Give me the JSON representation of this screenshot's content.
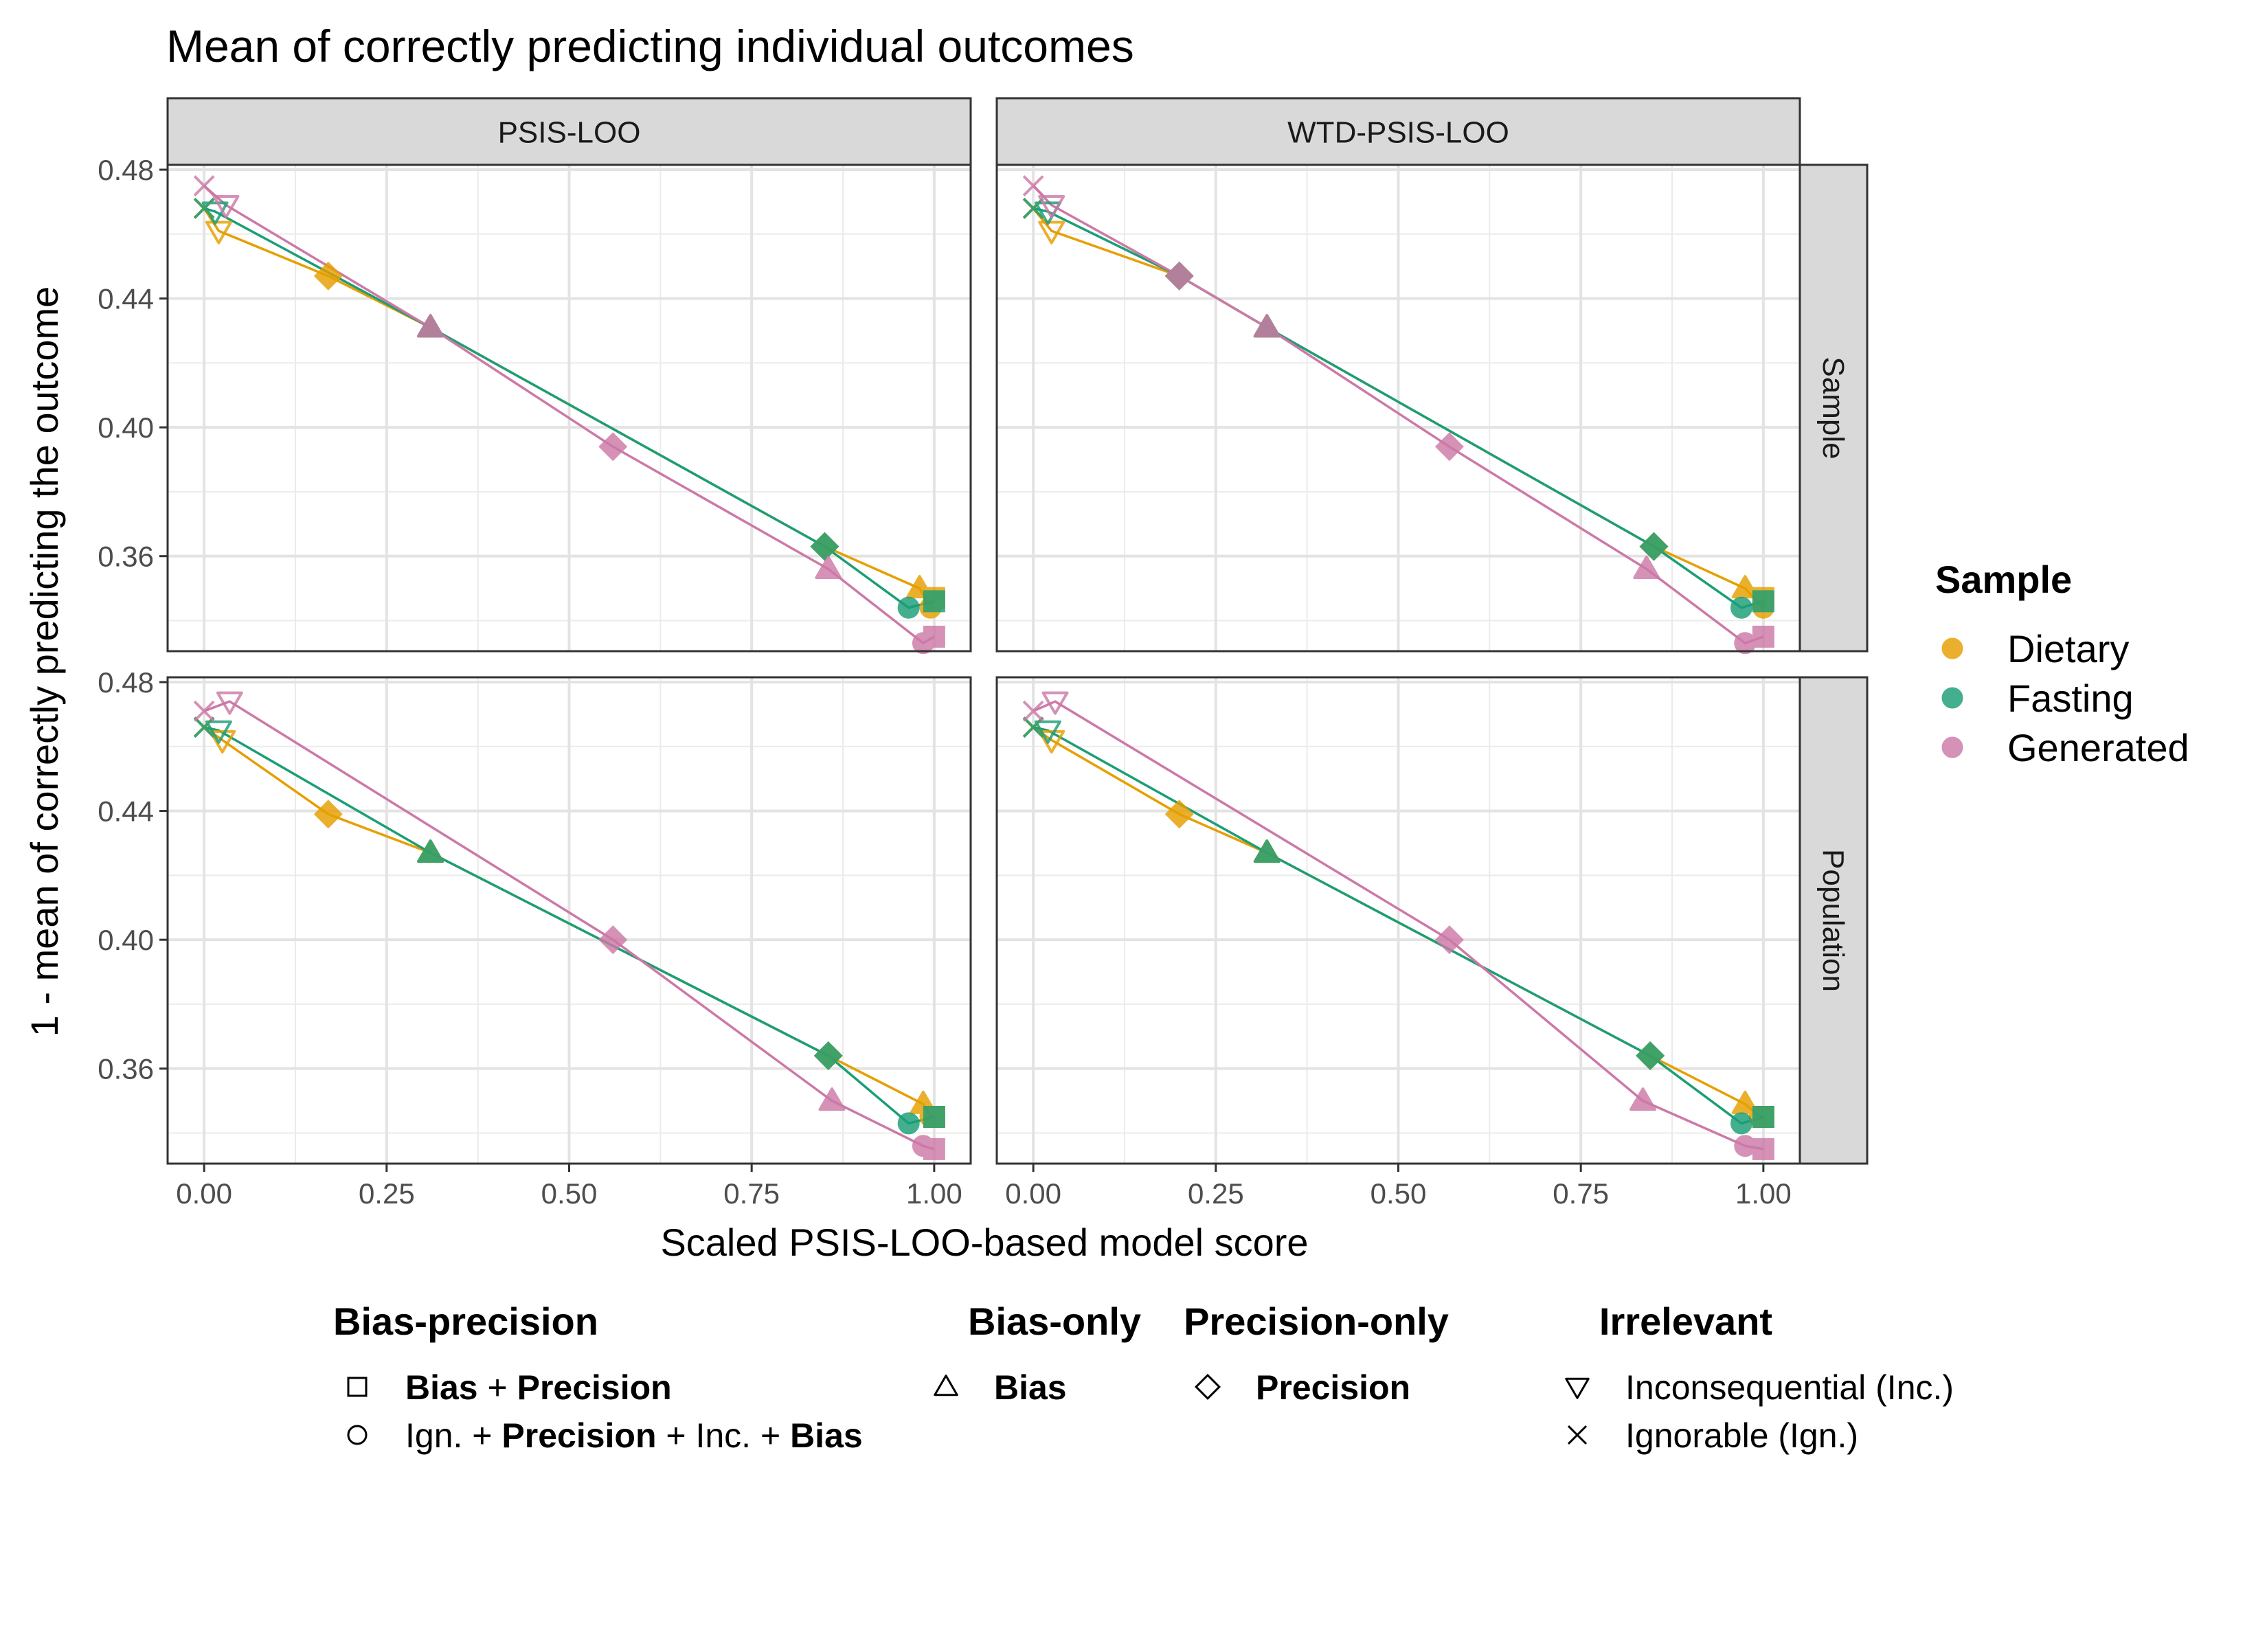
{
  "title": "Mean of correctly predicting individual outcomes",
  "chart_data": {
    "type": "line",
    "title": "Mean of correctly predicting individual outcomes",
    "xlabel": "Scaled PSIS-LOO-based model score",
    "ylabel": "1 - mean of correctly predicting the outcome",
    "xlim": [
      -0.05,
      1.05
    ],
    "ylim": [
      0.3305,
      0.4815
    ],
    "x_ticks": [
      "0.00",
      "0.25",
      "0.50",
      "0.75",
      "1.00"
    ],
    "y_ticks": [
      "0.36",
      "0.40",
      "0.44",
      "0.48"
    ],
    "grid": true,
    "col_facets": [
      "PSIS-LOO",
      "WTD-PSIS-LOO"
    ],
    "row_facets": [
      "Sample",
      "Population"
    ],
    "colors": {
      "Dietary": "#E69F00",
      "Fasting": "#1B9E77",
      "Generated": "#CC79A7"
    },
    "legend_color": {
      "title": "Sample",
      "placement": "right",
      "entries": [
        "Dietary",
        "Fasting",
        "Generated"
      ]
    },
    "legend_shape": {
      "placement": "bottom",
      "groups": [
        {
          "title": "Bias-precision",
          "entries": [
            {
              "shape": "square",
              "parts": [
                {
                  "t": "Bias",
                  "b": true
                },
                {
                  "t": " + ",
                  "b": false
                },
                {
                  "t": "Precision",
                  "b": true
                }
              ]
            },
            {
              "shape": "circle",
              "parts": [
                {
                  "t": "Ign. + ",
                  "b": false
                },
                {
                  "t": "Precision",
                  "b": true
                },
                {
                  "t": " + Inc. + ",
                  "b": false
                },
                {
                  "t": "Bias",
                  "b": true
                }
              ]
            }
          ]
        },
        {
          "title": "Bias-only",
          "entries": [
            {
              "shape": "triangle",
              "parts": [
                {
                  "t": "Bias",
                  "b": true
                }
              ]
            }
          ]
        },
        {
          "title": "Precision-only",
          "entries": [
            {
              "shape": "diamond",
              "parts": [
                {
                  "t": "Precision",
                  "b": true
                }
              ]
            }
          ]
        },
        {
          "title": "Irrelevant",
          "entries": [
            {
              "shape": "triangle-down",
              "parts": [
                {
                  "t": "Inconsequential (Inc.)",
                  "b": false
                }
              ]
            },
            {
              "shape": "cross",
              "parts": [
                {
                  "t": "Ignorable (Ign.)",
                  "b": false
                }
              ]
            }
          ]
        }
      ]
    },
    "panels": [
      {
        "col": "PSIS-LOO",
        "row": "Sample",
        "series": [
          {
            "name": "Dietary",
            "points": [
              {
                "x": 0.0,
                "y": 0.468,
                "shape": "cross"
              },
              {
                "x": 0.02,
                "y": 0.461,
                "shape": "triangle-down"
              },
              {
                "x": 0.17,
                "y": 0.447,
                "shape": "diamond"
              },
              {
                "x": 0.31,
                "y": 0.431,
                "shape": "triangle"
              },
              {
                "x": 0.85,
                "y": 0.363,
                "shape": "diamond"
              },
              {
                "x": 0.98,
                "y": 0.35,
                "shape": "triangle"
              },
              {
                "x": 0.995,
                "y": 0.344,
                "shape": "circle"
              },
              {
                "x": 1.0,
                "y": 0.347,
                "shape": "square"
              }
            ]
          },
          {
            "name": "Fasting",
            "points": [
              {
                "x": 0.0,
                "y": 0.468,
                "shape": "cross"
              },
              {
                "x": 0.015,
                "y": 0.467,
                "shape": "triangle-down"
              },
              {
                "x": 0.31,
                "y": 0.431,
                "shape": "triangle"
              },
              {
                "x": 0.85,
                "y": 0.363,
                "shape": "diamond"
              },
              {
                "x": 0.965,
                "y": 0.344,
                "shape": "circle"
              },
              {
                "x": 1.0,
                "y": 0.346,
                "shape": "square"
              }
            ]
          },
          {
            "name": "Generated",
            "points": [
              {
                "x": 0.0,
                "y": 0.475,
                "shape": "cross"
              },
              {
                "x": 0.03,
                "y": 0.469,
                "shape": "triangle-down"
              },
              {
                "x": 0.31,
                "y": 0.431,
                "shape": "triangle"
              },
              {
                "x": 0.56,
                "y": 0.394,
                "shape": "diamond"
              },
              {
                "x": 0.855,
                "y": 0.356,
                "shape": "triangle"
              },
              {
                "x": 0.985,
                "y": 0.333,
                "shape": "circle"
              },
              {
                "x": 1.0,
                "y": 0.335,
                "shape": "square"
              }
            ]
          }
        ]
      },
      {
        "col": "WTD-PSIS-LOO",
        "row": "Sample",
        "series": [
          {
            "name": "Dietary",
            "points": [
              {
                "x": 0.0,
                "y": 0.468,
                "shape": "cross"
              },
              {
                "x": 0.025,
                "y": 0.461,
                "shape": "triangle-down"
              },
              {
                "x": 0.2,
                "y": 0.447,
                "shape": "diamond"
              },
              {
                "x": 0.32,
                "y": 0.431,
                "shape": "triangle"
              },
              {
                "x": 0.85,
                "y": 0.363,
                "shape": "diamond"
              },
              {
                "x": 0.975,
                "y": 0.35,
                "shape": "triangle"
              },
              {
                "x": 1.0,
                "y": 0.344,
                "shape": "circle"
              },
              {
                "x": 1.0,
                "y": 0.347,
                "shape": "square"
              }
            ]
          },
          {
            "name": "Fasting",
            "points": [
              {
                "x": 0.0,
                "y": 0.468,
                "shape": "cross"
              },
              {
                "x": 0.02,
                "y": 0.467,
                "shape": "triangle-down"
              },
              {
                "x": 0.2,
                "y": 0.447,
                "shape": "diamond"
              },
              {
                "x": 0.32,
                "y": 0.431,
                "shape": "triangle"
              },
              {
                "x": 0.85,
                "y": 0.363,
                "shape": "diamond"
              },
              {
                "x": 0.97,
                "y": 0.344,
                "shape": "circle"
              },
              {
                "x": 1.0,
                "y": 0.346,
                "shape": "square"
              }
            ]
          },
          {
            "name": "Generated",
            "points": [
              {
                "x": 0.0,
                "y": 0.475,
                "shape": "cross"
              },
              {
                "x": 0.025,
                "y": 0.469,
                "shape": "triangle-down"
              },
              {
                "x": 0.2,
                "y": 0.447,
                "shape": "diamond"
              },
              {
                "x": 0.32,
                "y": 0.431,
                "shape": "triangle"
              },
              {
                "x": 0.57,
                "y": 0.394,
                "shape": "diamond"
              },
              {
                "x": 0.84,
                "y": 0.356,
                "shape": "triangle"
              },
              {
                "x": 0.975,
                "y": 0.333,
                "shape": "circle"
              },
              {
                "x": 1.0,
                "y": 0.335,
                "shape": "square"
              }
            ]
          }
        ]
      },
      {
        "col": "PSIS-LOO",
        "row": "Population",
        "series": [
          {
            "name": "Dietary",
            "points": [
              {
                "x": 0.0,
                "y": 0.466,
                "shape": "cross"
              },
              {
                "x": 0.025,
                "y": 0.462,
                "shape": "triangle-down"
              },
              {
                "x": 0.17,
                "y": 0.439,
                "shape": "diamond"
              },
              {
                "x": 0.31,
                "y": 0.427,
                "shape": "triangle"
              },
              {
                "x": 0.855,
                "y": 0.364,
                "shape": "diamond"
              },
              {
                "x": 0.985,
                "y": 0.349,
                "shape": "triangle"
              },
              {
                "x": 0.995,
                "y": 0.345,
                "shape": "circle"
              },
              {
                "x": 1.0,
                "y": 0.345,
                "shape": "square"
              }
            ]
          },
          {
            "name": "Fasting",
            "points": [
              {
                "x": 0.0,
                "y": 0.466,
                "shape": "cross"
              },
              {
                "x": 0.02,
                "y": 0.465,
                "shape": "triangle-down"
              },
              {
                "x": 0.31,
                "y": 0.427,
                "shape": "triangle"
              },
              {
                "x": 0.855,
                "y": 0.364,
                "shape": "diamond"
              },
              {
                "x": 0.965,
                "y": 0.343,
                "shape": "circle"
              },
              {
                "x": 1.0,
                "y": 0.345,
                "shape": "square"
              }
            ]
          },
          {
            "name": "Generated",
            "points": [
              {
                "x": 0.0,
                "y": 0.471,
                "shape": "cross"
              },
              {
                "x": 0.035,
                "y": 0.474,
                "shape": "triangle-down"
              },
              {
                "x": 0.56,
                "y": 0.4,
                "shape": "diamond"
              },
              {
                "x": 0.86,
                "y": 0.35,
                "shape": "triangle"
              },
              {
                "x": 0.985,
                "y": 0.336,
                "shape": "circle"
              },
              {
                "x": 1.0,
                "y": 0.335,
                "shape": "square"
              }
            ]
          }
        ]
      },
      {
        "col": "WTD-PSIS-LOO",
        "row": "Population",
        "series": [
          {
            "name": "Dietary",
            "points": [
              {
                "x": 0.0,
                "y": 0.466,
                "shape": "cross"
              },
              {
                "x": 0.025,
                "y": 0.462,
                "shape": "triangle-down"
              },
              {
                "x": 0.2,
                "y": 0.439,
                "shape": "diamond"
              },
              {
                "x": 0.32,
                "y": 0.427,
                "shape": "triangle"
              },
              {
                "x": 0.845,
                "y": 0.364,
                "shape": "diamond"
              },
              {
                "x": 0.975,
                "y": 0.349,
                "shape": "triangle"
              },
              {
                "x": 0.995,
                "y": 0.345,
                "shape": "circle"
              },
              {
                "x": 1.0,
                "y": 0.345,
                "shape": "square"
              }
            ]
          },
          {
            "name": "Fasting",
            "points": [
              {
                "x": 0.0,
                "y": 0.466,
                "shape": "cross"
              },
              {
                "x": 0.02,
                "y": 0.465,
                "shape": "triangle-down"
              },
              {
                "x": 0.32,
                "y": 0.427,
                "shape": "triangle"
              },
              {
                "x": 0.845,
                "y": 0.364,
                "shape": "diamond"
              },
              {
                "x": 0.97,
                "y": 0.343,
                "shape": "circle"
              },
              {
                "x": 1.0,
                "y": 0.345,
                "shape": "square"
              }
            ]
          },
          {
            "name": "Generated",
            "points": [
              {
                "x": 0.0,
                "y": 0.471,
                "shape": "cross"
              },
              {
                "x": 0.03,
                "y": 0.474,
                "shape": "triangle-down"
              },
              {
                "x": 0.57,
                "y": 0.4,
                "shape": "diamond"
              },
              {
                "x": 0.835,
                "y": 0.35,
                "shape": "triangle"
              },
              {
                "x": 0.975,
                "y": 0.336,
                "shape": "circle"
              },
              {
                "x": 1.0,
                "y": 0.335,
                "shape": "square"
              }
            ]
          }
        ]
      }
    ]
  }
}
